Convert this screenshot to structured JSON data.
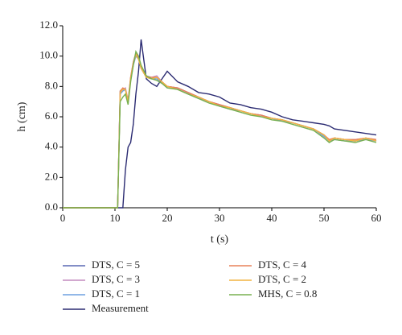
{
  "chart_data": {
    "type": "line",
    "x_label": "t (s)",
    "y_label": "h (cm)",
    "x": [
      0,
      5,
      10,
      10.5,
      11,
      11.5,
      12,
      12.5,
      13,
      13.5,
      14,
      14.5,
      15,
      16,
      17,
      18,
      19,
      20,
      22,
      24,
      26,
      28,
      30,
      32,
      34,
      36,
      38,
      40,
      42,
      44,
      46,
      48,
      50,
      51,
      52,
      54,
      56,
      58,
      60
    ],
    "xlim": [
      0,
      60
    ],
    "xticks": [
      0,
      10,
      20,
      30,
      40,
      50,
      60
    ],
    "ylim": [
      0,
      12
    ],
    "yticks": [
      {
        "value": 0,
        "label": "0.0"
      },
      {
        "value": 2,
        "label": "2.0"
      },
      {
        "value": 4,
        "label": "4.0"
      },
      {
        "value": 6,
        "label": "6.0"
      },
      {
        "value": 8,
        "label": "8.0"
      },
      {
        "value": 10,
        "label": "10.0"
      },
      {
        "value": 12,
        "label": "12.0"
      }
    ],
    "grid": false,
    "series": [
      {
        "name": "DTS, C = 5",
        "color": "#5a68b4",
        "values": [
          0,
          0,
          0,
          0,
          7.7,
          7.8,
          7.8,
          7.0,
          8.5,
          9.5,
          10.1,
          9.8,
          9.2,
          8.6,
          8.5,
          8.6,
          8.3,
          8.0,
          7.9,
          7.6,
          7.3,
          7.0,
          6.8,
          6.6,
          6.4,
          6.2,
          6.1,
          5.9,
          5.8,
          5.6,
          5.4,
          5.2,
          4.8,
          4.4,
          4.6,
          4.5,
          4.4,
          4.6,
          4.4
        ]
      },
      {
        "name": "DTS, C = 3",
        "color": "#c48bbf",
        "values": [
          0,
          0,
          0,
          0,
          7.6,
          7.8,
          7.9,
          7.1,
          8.6,
          9.6,
          10.2,
          9.9,
          9.3,
          8.7,
          8.6,
          8.7,
          8.3,
          8.0,
          7.9,
          7.6,
          7.3,
          7.0,
          6.8,
          6.6,
          6.4,
          6.2,
          6.1,
          5.9,
          5.8,
          5.6,
          5.4,
          5.2,
          4.8,
          4.5,
          4.6,
          4.5,
          4.5,
          4.6,
          4.5
        ]
      },
      {
        "name": "DTS, C = 1",
        "color": "#6fa0e0",
        "values": [
          0,
          0,
          0,
          0,
          7.5,
          7.7,
          7.8,
          7.0,
          8.4,
          9.4,
          10.0,
          9.8,
          9.2,
          8.6,
          8.5,
          8.5,
          8.2,
          8.0,
          7.8,
          7.5,
          7.2,
          7.0,
          6.7,
          6.5,
          6.4,
          6.2,
          6.0,
          5.9,
          5.7,
          5.6,
          5.4,
          5.2,
          4.7,
          4.4,
          4.5,
          4.4,
          4.4,
          4.5,
          4.4
        ]
      },
      {
        "name": "Measurement",
        "color": "#2b2b72",
        "values": [
          0,
          0,
          0,
          0,
          0,
          0,
          2.5,
          4.0,
          4.3,
          5.5,
          7.5,
          9.0,
          11.1,
          8.5,
          8.2,
          8.0,
          8.5,
          9.0,
          8.3,
          8.0,
          7.6,
          7.5,
          7.3,
          6.9,
          6.8,
          6.6,
          6.5,
          6.3,
          6.0,
          5.8,
          5.7,
          5.6,
          5.5,
          5.4,
          5.2,
          5.1,
          5.0,
          4.9,
          4.8
        ]
      },
      {
        "name": "DTS, C = 4",
        "color": "#e8825a",
        "values": [
          0,
          0,
          0,
          0,
          7.7,
          7.9,
          7.8,
          7.0,
          8.6,
          9.6,
          10.2,
          9.9,
          9.2,
          8.6,
          8.6,
          8.6,
          8.3,
          8.0,
          7.9,
          7.6,
          7.3,
          7.0,
          6.8,
          6.6,
          6.4,
          6.2,
          6.1,
          5.9,
          5.8,
          5.6,
          5.4,
          5.2,
          4.8,
          4.5,
          4.6,
          4.5,
          4.5,
          4.6,
          4.5
        ]
      },
      {
        "name": "DTS, C = 2",
        "color": "#f2b441",
        "values": [
          0,
          0,
          0,
          0,
          7.6,
          7.8,
          7.8,
          7.0,
          8.5,
          9.5,
          10.1,
          9.8,
          9.2,
          8.6,
          8.5,
          8.6,
          8.3,
          8.0,
          7.8,
          7.5,
          7.3,
          7.0,
          6.7,
          6.6,
          6.4,
          6.2,
          6.0,
          5.9,
          5.8,
          5.6,
          5.4,
          5.2,
          4.8,
          4.4,
          4.6,
          4.5,
          4.4,
          4.6,
          4.4
        ]
      },
      {
        "name": "MHS, C = 0.8",
        "color": "#78b050",
        "values": [
          0,
          0,
          0,
          0,
          7.0,
          7.3,
          7.5,
          6.8,
          8.3,
          9.4,
          10.3,
          10.0,
          9.4,
          8.7,
          8.5,
          8.4,
          8.2,
          7.9,
          7.8,
          7.5,
          7.2,
          6.9,
          6.7,
          6.5,
          6.3,
          6.1,
          6.0,
          5.8,
          5.7,
          5.5,
          5.3,
          5.1,
          4.6,
          4.3,
          4.5,
          4.4,
          4.3,
          4.5,
          4.3
        ]
      }
    ]
  }
}
